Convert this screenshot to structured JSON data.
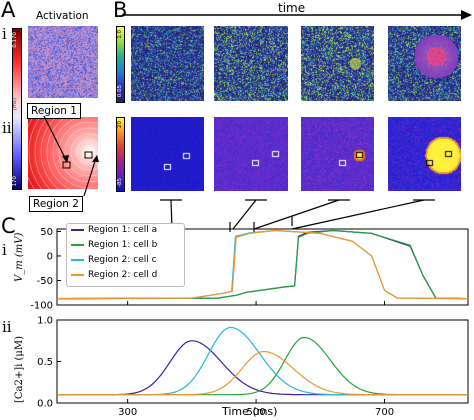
{
  "panel_labels": {
    "a": "A",
    "b": "B",
    "c": "C"
  },
  "row_labels": {
    "i": "i",
    "ii": "ii"
  },
  "activation_title": "Activation",
  "time_label": "time",
  "region_labels": {
    "r1": "Region 1",
    "r2": "Region 2"
  },
  "colorbar_ticks": {
    "act_top": "0.170",
    "act_mid": "(ms)",
    "act_bot": "170",
    "b_i_top": "1.0",
    "b_i_bot": "0.05",
    "b_ii_top": "20",
    "b_ii_bot": "-85"
  },
  "colors": {
    "cell_a": "#3b1fa8",
    "cell_b": "#22a53a",
    "cell_c": "#25b8d8",
    "cell_d": "#f0962a",
    "spot": "#ffff33"
  },
  "chart_data": [
    {
      "type": "line",
      "title": "",
      "xlabel": "",
      "ylabel": "V_m (mV)",
      "xlim": [
        190,
        830
      ],
      "ylim": [
        -100,
        55
      ],
      "yticks": [
        50,
        0,
        -50,
        -100
      ],
      "legend_position": "top-left",
      "series": [
        {
          "name": "Region 1: cell a",
          "color": "#3b1fa8",
          "x": [
            190,
            440,
            470,
            485,
            545,
            560,
            566,
            580,
            620,
            680,
            740,
            760,
            780,
            830
          ],
          "y": [
            -87,
            -86,
            -80,
            -74,
            -63,
            -61,
            40,
            48,
            52,
            46,
            20,
            -40,
            -86,
            -87
          ]
        },
        {
          "name": "Region 1: cell b",
          "color": "#22a53a",
          "x": [
            190,
            440,
            470,
            485,
            545,
            560,
            566,
            580,
            620,
            680,
            740,
            760,
            780,
            830
          ],
          "y": [
            -87,
            -86,
            -80,
            -74,
            -63,
            -61,
            38,
            46,
            52,
            46,
            22,
            -40,
            -86,
            -87
          ]
        },
        {
          "name": "Region 2: cell c",
          "color": "#25b8d8",
          "x": [
            190,
            400,
            450,
            462,
            468,
            490,
            530,
            600,
            650,
            680,
            700,
            720,
            830
          ],
          "y": [
            -87,
            -86,
            -76,
            -72,
            40,
            47,
            52,
            46,
            30,
            0,
            -70,
            -86,
            -87
          ]
        },
        {
          "name": "Region 2: cell d",
          "color": "#f0962a",
          "x": [
            190,
            400,
            450,
            463,
            469,
            490,
            530,
            600,
            650,
            680,
            700,
            720,
            830
          ],
          "y": [
            -87,
            -86,
            -76,
            -72,
            38,
            46,
            52,
            46,
            30,
            0,
            -70,
            -86,
            -87
          ]
        }
      ]
    },
    {
      "type": "line",
      "title": "",
      "xlabel": "Time (ms)",
      "ylabel": "[Ca2+]i (μM)",
      "xlim": [
        190,
        830
      ],
      "ylim": [
        0.0,
        1.0
      ],
      "xticks": [
        300,
        500,
        700
      ],
      "yticks": [
        1.0,
        0.5,
        0.0
      ],
      "series": [
        {
          "name": "Region 1: cell a",
          "color": "#3b1fa8",
          "peak_x": 400,
          "peak_y": 0.75
        },
        {
          "name": "Region 1: cell b",
          "color": "#22a53a",
          "peak_x": 575,
          "peak_y": 0.79
        },
        {
          "name": "Region 2: cell c",
          "color": "#25b8d8",
          "peak_x": 460,
          "peak_y": 0.91
        },
        {
          "name": "Region 2: cell d",
          "color": "#f0962a",
          "peak_x": 512,
          "peak_y": 0.62
        }
      ]
    }
  ]
}
